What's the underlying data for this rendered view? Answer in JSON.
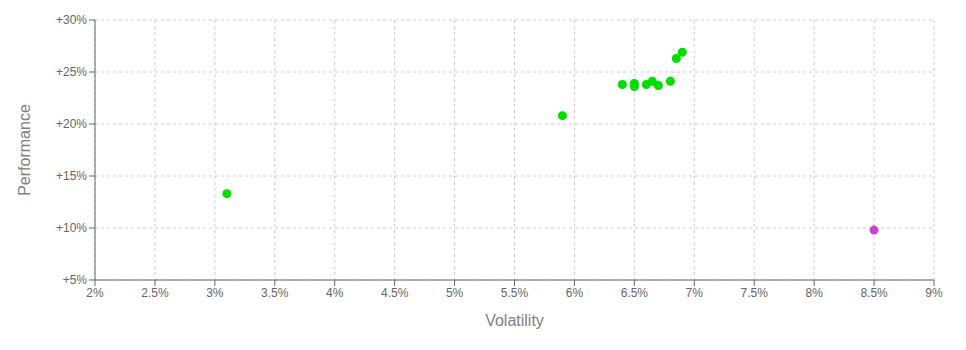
{
  "chart_data": {
    "type": "scatter",
    "xlabel": "Volatility",
    "ylabel": "Performance",
    "xlim": [
      0.02,
      0.09
    ],
    "ylim": [
      0.05,
      0.3
    ],
    "xticks": [
      {
        "value": 0.02,
        "label": "2%"
      },
      {
        "value": 0.025,
        "label": "2.5%"
      },
      {
        "value": 0.03,
        "label": "3%"
      },
      {
        "value": 0.035,
        "label": "3.5%"
      },
      {
        "value": 0.04,
        "label": "4%"
      },
      {
        "value": 0.045,
        "label": "4.5%"
      },
      {
        "value": 0.05,
        "label": "5%"
      },
      {
        "value": 0.055,
        "label": "5.5%"
      },
      {
        "value": 0.06,
        "label": "6%"
      },
      {
        "value": 0.065,
        "label": "6.5%"
      },
      {
        "value": 0.07,
        "label": "7%"
      },
      {
        "value": 0.075,
        "label": "7.5%"
      },
      {
        "value": 0.08,
        "label": "8%"
      },
      {
        "value": 0.085,
        "label": "8.5%"
      },
      {
        "value": 0.09,
        "label": "9%"
      }
    ],
    "yticks": [
      {
        "value": 0.05,
        "label": "+5%"
      },
      {
        "value": 0.1,
        "label": "+10%"
      },
      {
        "value": 0.15,
        "label": "+15%"
      },
      {
        "value": 0.2,
        "label": "+20%"
      },
      {
        "value": 0.25,
        "label": "+25%"
      },
      {
        "value": 0.3,
        "label": "+30%"
      }
    ],
    "grid": true,
    "series": [
      {
        "color": "#00dd00",
        "x": [
          0.031,
          0.059,
          0.064,
          0.065,
          0.065,
          0.066,
          0.0665,
          0.067,
          0.068,
          0.0685,
          0.069
        ],
        "values": [
          0.133,
          0.208,
          0.238,
          0.239,
          0.236,
          0.238,
          0.241,
          0.237,
          0.241,
          0.263,
          0.269
        ]
      },
      {
        "color": "#cc44cc",
        "x": [
          0.085
        ],
        "values": [
          0.098
        ]
      }
    ]
  }
}
